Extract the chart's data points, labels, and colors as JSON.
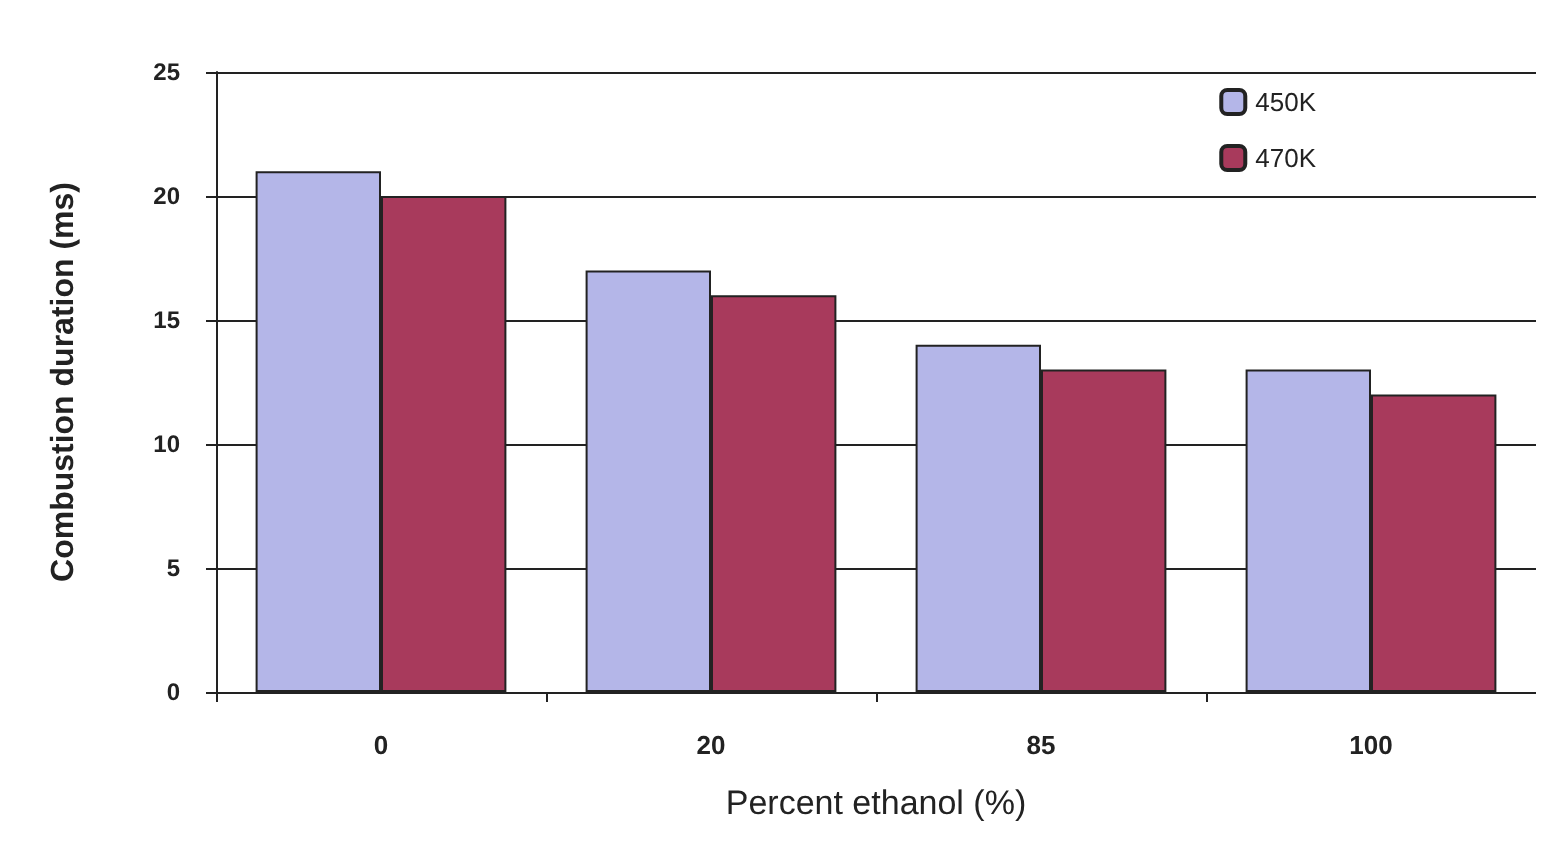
{
  "chart_data": {
    "type": "bar",
    "xlabel": "Percent ethanol (%)",
    "ylabel": "Combustion duration (ms)",
    "categories": [
      "0",
      "20",
      "85",
      "100"
    ],
    "series": [
      {
        "name": "450K",
        "color": "#b4b6e8",
        "values": [
          21,
          17,
          14,
          13
        ]
      },
      {
        "name": "470K",
        "color": "#a83a5c",
        "values": [
          20,
          16,
          13,
          12
        ]
      }
    ],
    "ylim": [
      0,
      25
    ],
    "yticks": [
      0,
      5,
      10,
      15,
      20,
      25
    ],
    "grid": "y",
    "legend": "top right"
  }
}
